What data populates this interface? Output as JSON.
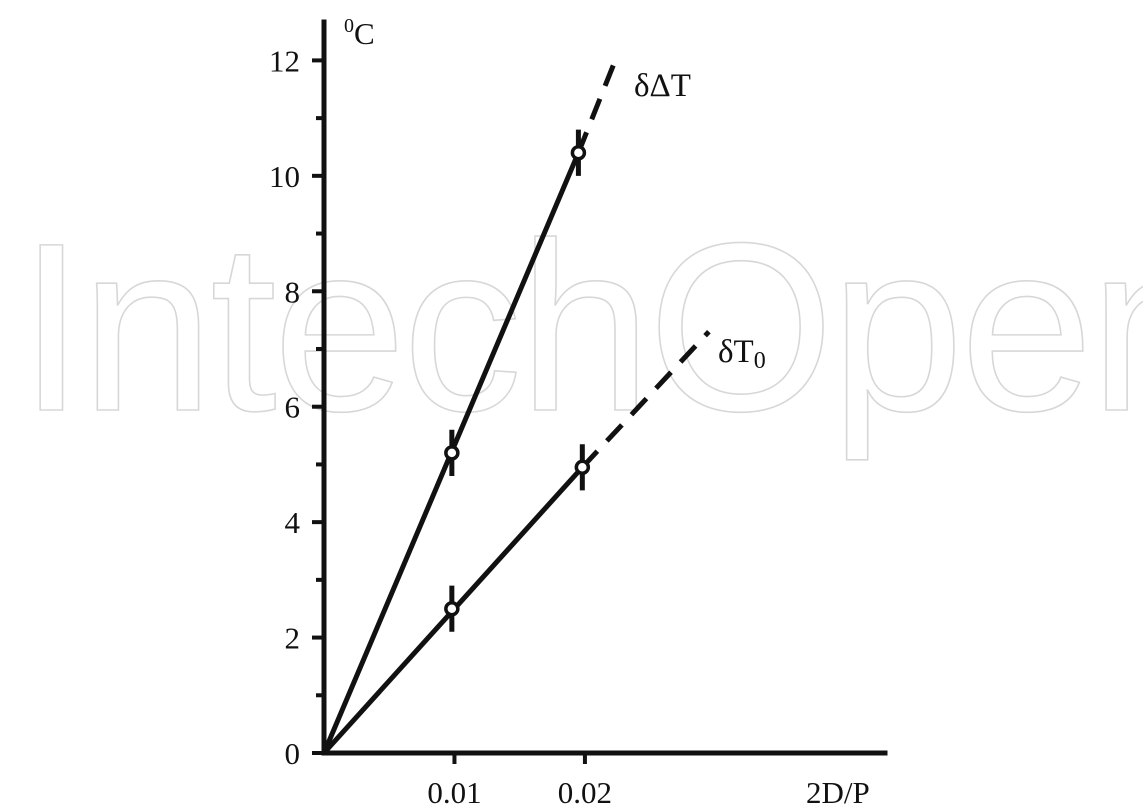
{
  "watermark": "IntechOpen",
  "chart_data": {
    "type": "line",
    "ylabel": "0C",
    "ylabel_superscript": "0",
    "ylabel_text": "C",
    "xlabel": "2D/P",
    "x_ticks": [
      0.01,
      0.02
    ],
    "x_tick_labels": [
      "0.01",
      "0.02"
    ],
    "y_ticks": [
      0,
      2,
      4,
      6,
      8,
      10,
      12
    ],
    "y_tick_labels": [
      "0",
      "2",
      "4",
      "6",
      "8",
      "10",
      "12"
    ],
    "y_minor_ticks": [
      1,
      3,
      5,
      7,
      9,
      11
    ],
    "xlim": [
      0,
      0.043
    ],
    "ylim": [
      0,
      12.7
    ],
    "grid": false,
    "legend": "inline labels at line ends",
    "series": [
      {
        "name": "δΔT",
        "points": [
          {
            "x": 0.0,
            "y": 0.0
          },
          {
            "x": 0.0098,
            "y": 5.2,
            "err": 0.4
          },
          {
            "x": 0.0195,
            "y": 10.4,
            "err": 0.4
          }
        ],
        "extrapolation": [
          {
            "x": 0.0195,
            "y": 10.4
          },
          {
            "x": 0.0225,
            "y": 12.1
          }
        ]
      },
      {
        "name": "δT0",
        "name_main": "δT",
        "name_sub": "0",
        "points": [
          {
            "x": 0.0,
            "y": 0.0
          },
          {
            "x": 0.0098,
            "y": 2.5,
            "err": 0.4
          },
          {
            "x": 0.0198,
            "y": 4.95,
            "err": 0.4
          }
        ],
        "extrapolation": [
          {
            "x": 0.0198,
            "y": 4.95
          },
          {
            "x": 0.0295,
            "y": 7.3
          }
        ]
      }
    ]
  }
}
